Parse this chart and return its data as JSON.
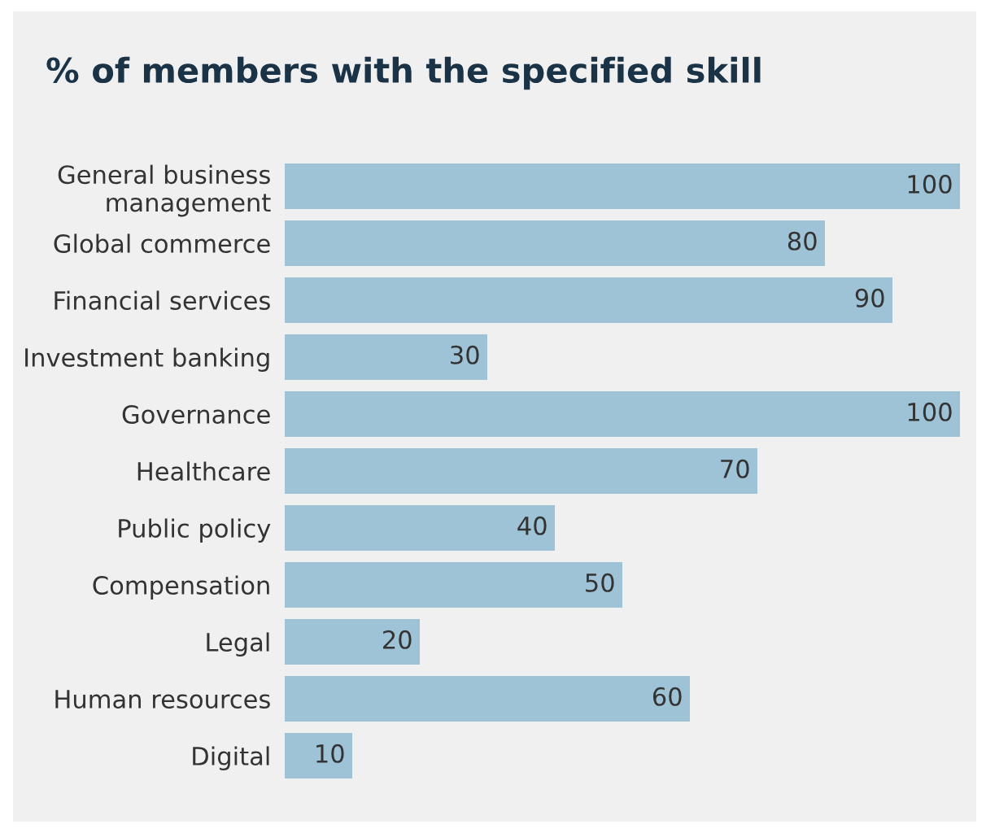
{
  "chart_data": {
    "type": "bar",
    "orientation": "horizontal",
    "title": "% of members with the specified skill",
    "categories": [
      "General business\nmanagement",
      "Global commerce",
      "Financial services",
      "Investment banking",
      "Governance",
      "Healthcare",
      "Public policy",
      "Compensation",
      "Legal",
      "Human resources",
      "Digital"
    ],
    "values": [
      100,
      80,
      90,
      30,
      100,
      70,
      40,
      50,
      20,
      60,
      10
    ],
    "color": "#9fc3d6",
    "data_labels": true,
    "grid": false,
    "legend": false
  }
}
